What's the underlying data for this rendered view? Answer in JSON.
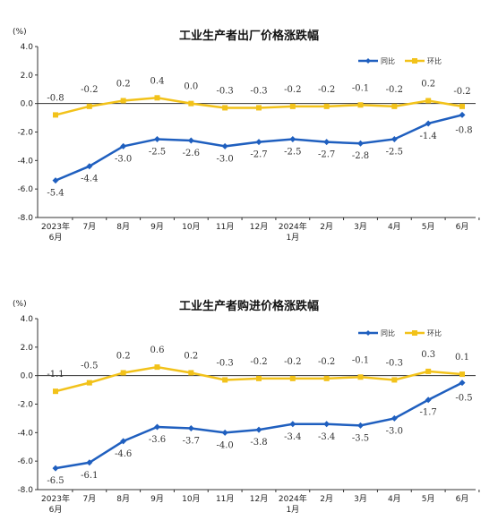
{
  "chart_data": [
    {
      "type": "line",
      "title": "工业生产者出厂价格涨跌幅",
      "ylabel": "(%)",
      "ylim": [
        -8.0,
        4.0
      ],
      "yticks": [
        "4.0",
        "2.0",
        "0.0",
        "-2.0",
        "-4.0",
        "-6.0",
        "-8.0"
      ],
      "categories": [
        "2023年\n6月",
        "7月",
        "8月",
        "9月",
        "10月",
        "11月",
        "12月",
        "2024年\n1月",
        "2月",
        "3月",
        "4月",
        "5月",
        "6月"
      ],
      "series": [
        {
          "name": "同比",
          "color": "#1f5fbf",
          "values": [
            -5.4,
            -4.4,
            -3.0,
            -2.5,
            -2.6,
            -3.0,
            -2.7,
            -2.5,
            -2.7,
            -2.8,
            -2.5,
            -1.4,
            -0.8
          ],
          "labels": [
            "-5.4",
            "-4.4",
            "-3.0",
            "-2.5",
            "-2.6",
            "-3.0",
            "-2.7",
            "-2.5",
            "-2.7",
            "-2.8",
            "-2.5",
            "-1.4",
            "-0.8"
          ]
        },
        {
          "name": "环比",
          "color": "#f2c21a",
          "values": [
            -0.8,
            -0.2,
            0.2,
            0.4,
            0.0,
            -0.3,
            -0.3,
            -0.2,
            -0.2,
            -0.1,
            -0.2,
            0.2,
            -0.2
          ],
          "labels": [
            "-0.8",
            "-0.2",
            "0.2",
            "0.4",
            "0.0",
            "-0.3",
            "-0.3",
            "-0.2",
            "-0.2",
            "-0.1",
            "-0.2",
            "0.2",
            "-0.2"
          ]
        }
      ],
      "legend": "top-right",
      "grid": false
    },
    {
      "type": "line",
      "title": "工业生产者购进价格涨跌幅",
      "ylabel": "(%)",
      "ylim": [
        -8.0,
        4.0
      ],
      "yticks": [
        "4.0",
        "2.0",
        "0.0",
        "-2.0",
        "-4.0",
        "-6.0",
        "-8.0"
      ],
      "categories": [
        "2023年\n6月",
        "7月",
        "8月",
        "9月",
        "10月",
        "11月",
        "12月",
        "2024年\n1月",
        "2月",
        "3月",
        "4月",
        "5月",
        "6月"
      ],
      "series": [
        {
          "name": "同比",
          "color": "#1f5fbf",
          "values": [
            -6.5,
            -6.1,
            -4.6,
            -3.6,
            -3.7,
            -4.0,
            -3.8,
            -3.4,
            -3.4,
            -3.5,
            -3.0,
            -1.7,
            -0.5
          ],
          "labels": [
            "-6.5",
            "-6.1",
            "-4.6",
            "-3.6",
            "-3.7",
            "-4.0",
            "-3.8",
            "-3.4",
            "-3.4",
            "-3.5",
            "-3.0",
            "-1.7",
            "-0.5"
          ]
        },
        {
          "name": "环比",
          "color": "#f2c21a",
          "values": [
            -1.1,
            -0.5,
            0.2,
            0.6,
            0.2,
            -0.3,
            -0.2,
            -0.2,
            -0.2,
            -0.1,
            -0.3,
            0.3,
            0.1
          ],
          "labels": [
            "-1.1",
            "-0.5",
            "0.2",
            "0.6",
            "0.2",
            "-0.3",
            "-0.2",
            "-0.2",
            "-0.2",
            "-0.1",
            "-0.3",
            "0.3",
            "0.1"
          ]
        }
      ],
      "legend": "top-right",
      "grid": false
    }
  ]
}
